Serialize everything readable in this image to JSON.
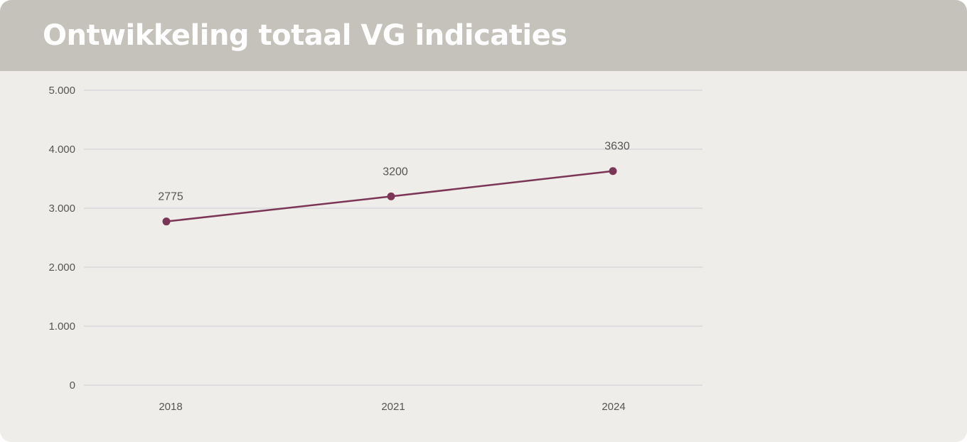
{
  "header": {
    "title": "Ontwikkeling totaal VG indicaties"
  },
  "colors": {
    "header_bg": "#c5c1bb",
    "card_bg": "#efede9",
    "series": "#7b3556",
    "grid": "#d9d8dc",
    "text": "#555555"
  },
  "chart_data": {
    "type": "line",
    "title": "Ontwikkeling totaal VG indicaties",
    "x": [
      "2018",
      "2021",
      "2024"
    ],
    "series": [
      {
        "values": [
          2775,
          3200,
          3630
        ],
        "data_labels": [
          "2775",
          "3200",
          "3630"
        ]
      }
    ],
    "ylim": [
      0,
      5000
    ],
    "yticks": [
      0,
      1000,
      2000,
      3000,
      4000,
      5000
    ],
    "ytick_labels": [
      "0",
      "1.000",
      "2.000",
      "3.000",
      "4.000",
      "5.000"
    ],
    "xlabel": "",
    "ylabel": "",
    "grid": true,
    "legend": "none",
    "markers": true
  }
}
